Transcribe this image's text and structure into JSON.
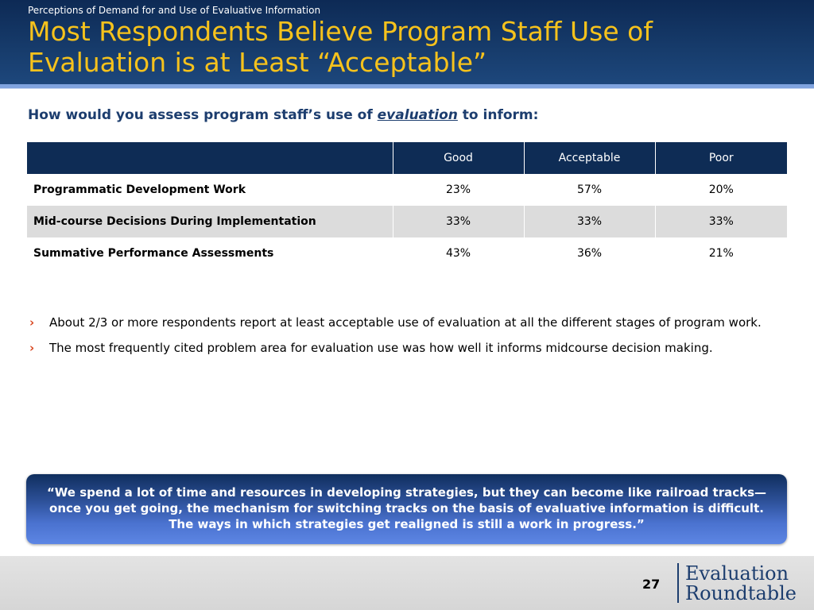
{
  "header": {
    "kicker": "Perceptions of Demand for and Use of Evaluative Information",
    "title": "Most Respondents Believe Program Staff Use of Evaluation is at Least “Acceptable”"
  },
  "question": {
    "prefix": "How would you assess program staff’s use of ",
    "emphasis": "evaluation",
    "suffix": " to inform:"
  },
  "table": {
    "columns": [
      "",
      "Good",
      "Acceptable",
      "Poor"
    ],
    "rows": [
      [
        "Programmatic Development Work",
        "23%",
        "57%",
        "20%"
      ],
      [
        "Mid-course Decisions During Implementation",
        "33%",
        "33%",
        "33%"
      ],
      [
        "Summative Performance Assessments",
        "43%",
        "36%",
        "21%"
      ]
    ]
  },
  "bullets": [
    "About 2/3 or more respondents report at least acceptable use of evaluation at all the different stages of program work.",
    "The most frequently cited problem area for evaluation use was how well it informs midcourse decision making."
  ],
  "bullet_glyph": "›",
  "quote": "“We spend a lot of time and resources in developing strategies, but they can become like railroad tracks—once you get going, the mechanism for switching tracks on the basis of evaluative information is difficult. The ways in which strategies get realigned is still a work in progress.”",
  "footer": {
    "page_number": "27",
    "logo_line1": "Evaluation",
    "logo_line2": "Roundtable"
  },
  "colors": {
    "title": "#f6c21c",
    "header_bg": "#0d2a55",
    "table_header": "#0e2c55",
    "accent_bullet": "#d8461f",
    "question_text": "#1c3d6e"
  }
}
